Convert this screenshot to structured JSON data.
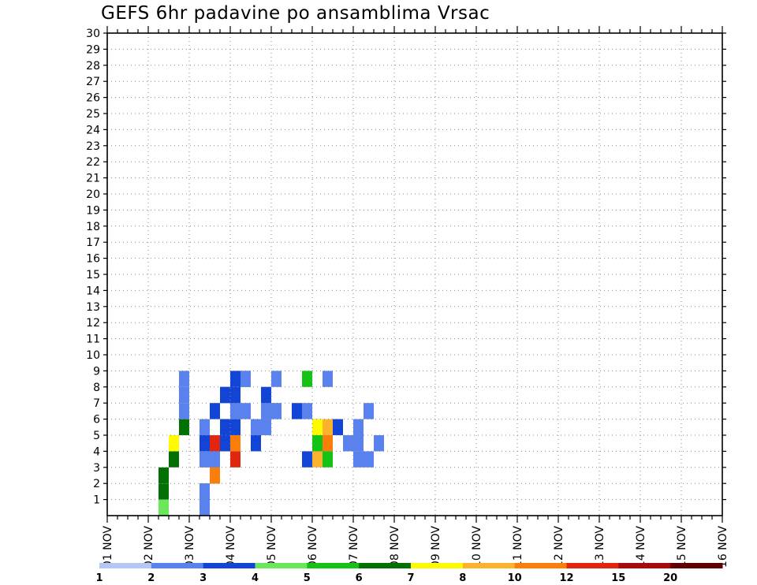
{
  "chart_data": {
    "type": "heatmap",
    "title": "GEFS 6hr padavine po ansamblima Vrsac",
    "xlabel": "",
    "ylabel": "",
    "x_tick_labels": [
      "01 NOV",
      "02 NOV",
      "03 NOV",
      "04 NOV",
      "05 NOV",
      "06 NOV",
      "07 NOV",
      "08 NOV",
      "09 NOV",
      "10 NOV",
      "11 NOV",
      "12 NOV",
      "13 NOV",
      "14 NOV",
      "15 NOV",
      "16 NOV"
    ],
    "y_tick_labels": [
      "1",
      "2",
      "3",
      "4",
      "5",
      "6",
      "7",
      "8",
      "9",
      "10",
      "11",
      "12",
      "13",
      "14",
      "15",
      "16",
      "17",
      "18",
      "19",
      "20",
      "21",
      "22",
      "23",
      "24",
      "25",
      "26",
      "27",
      "28",
      "29",
      "30"
    ],
    "ylim": [
      0,
      30
    ],
    "xlim": [
      0,
      60
    ],
    "x_step": "6hr",
    "grid": true,
    "legend": {
      "position": "bottom",
      "colors": [
        "#b4c8f8",
        "#5a82ee",
        "#1244d6",
        "#6ae85a",
        "#14c314",
        "#037003",
        "#fefa02",
        "#fdb22d",
        "#fb7e0a",
        "#e0260e",
        "#a80a0a",
        "#600000"
      ],
      "labels": [
        "1",
        "2",
        "3",
        "4",
        "5",
        "6",
        "7",
        "8",
        "10",
        "12",
        "15",
        "20"
      ]
    },
    "cells": [
      [
        5,
        0,
        3
      ],
      [
        9,
        0,
        3
      ],
      [
        9,
        0,
        5
      ],
      [
        9,
        0,
        1
      ],
      [
        5,
        1,
        5
      ],
      [
        9,
        1,
        4
      ],
      [
        9,
        1,
        4
      ],
      [
        9,
        1,
        1
      ],
      [
        5,
        2,
        5
      ],
      [
        10,
        2,
        4
      ],
      [
        10,
        2,
        6
      ],
      [
        10,
        2,
        10
      ],
      [
        10,
        2,
        8
      ],
      [
        6,
        3,
        5
      ],
      [
        9,
        3,
        8
      ],
      [
        9,
        3,
        1
      ],
      [
        10,
        3,
        1
      ],
      [
        12,
        3,
        7
      ],
      [
        12,
        3,
        9
      ],
      [
        19,
        3,
        2
      ],
      [
        20,
        3,
        7
      ],
      [
        21,
        3,
        4
      ],
      [
        24,
        3,
        1
      ],
      [
        25,
        3,
        1
      ],
      [
        6,
        4,
        6
      ],
      [
        9,
        4,
        2
      ],
      [
        10,
        4,
        10
      ],
      [
        10,
        4,
        9
      ],
      [
        11,
        4,
        12
      ],
      [
        11,
        4,
        7
      ],
      [
        11,
        4,
        2
      ],
      [
        12,
        4,
        8
      ],
      [
        14,
        4,
        2
      ],
      [
        20,
        4,
        4
      ],
      [
        21,
        4,
        8
      ],
      [
        23,
        4,
        1
      ],
      [
        24,
        4,
        1
      ],
      [
        26,
        4,
        1
      ],
      [
        7,
        5,
        5
      ],
      [
        9,
        5,
        1
      ],
      [
        11,
        5,
        2
      ],
      [
        11,
        5,
        2
      ],
      [
        12,
        5,
        2
      ],
      [
        14,
        5,
        1
      ],
      [
        15,
        5,
        1
      ],
      [
        15,
        5,
        1
      ],
      [
        20,
        5,
        5
      ],
      [
        20,
        5,
        6
      ],
      [
        21,
        5,
        7
      ],
      [
        22,
        5,
        2
      ],
      [
        24,
        5,
        1
      ],
      [
        7,
        6,
        1
      ],
      [
        10,
        6,
        2
      ],
      [
        12,
        6,
        3
      ],
      [
        12,
        6,
        2
      ],
      [
        12,
        6,
        1
      ],
      [
        13,
        6,
        1
      ],
      [
        15,
        6,
        1
      ],
      [
        15,
        6,
        1
      ],
      [
        16,
        6,
        3
      ],
      [
        16,
        6,
        1
      ],
      [
        18,
        6,
        2
      ],
      [
        19,
        6,
        1
      ],
      [
        25,
        6,
        1
      ],
      [
        7,
        7,
        1
      ],
      [
        11,
        7,
        2
      ],
      [
        11,
        7,
        1
      ],
      [
        11,
        7,
        2
      ],
      [
        12,
        7,
        1
      ],
      [
        12,
        7,
        1
      ],
      [
        12,
        7,
        2
      ],
      [
        15,
        7,
        1
      ],
      [
        15,
        7,
        2
      ],
      [
        7,
        8,
        1
      ],
      [
        12,
        8,
        2
      ],
      [
        13,
        8,
        5
      ],
      [
        13,
        8,
        1
      ],
      [
        16,
        8,
        1
      ],
      [
        19,
        8,
        4
      ],
      [
        21,
        8,
        1
      ]
    ]
  }
}
